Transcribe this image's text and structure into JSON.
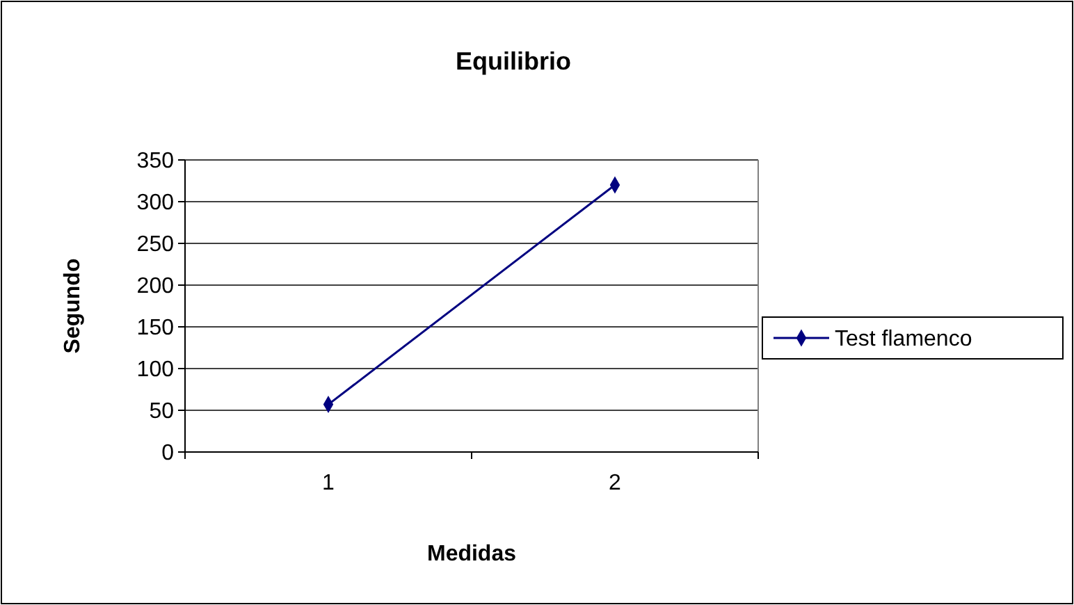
{
  "chart_data": {
    "type": "line",
    "title": "Equilibrio",
    "xlabel": "Medidas",
    "ylabel": "Segundo",
    "categories": [
      "1",
      "2"
    ],
    "series": [
      {
        "name": "Test flamenco",
        "color": "#000080",
        "values": [
          57,
          320
        ]
      }
    ],
    "ylim": [
      0,
      350
    ],
    "yticks": [
      0,
      50,
      100,
      150,
      200,
      250,
      300,
      350
    ],
    "grid": "y",
    "legend": "right",
    "marker": "diamond",
    "line_style": "solid"
  }
}
